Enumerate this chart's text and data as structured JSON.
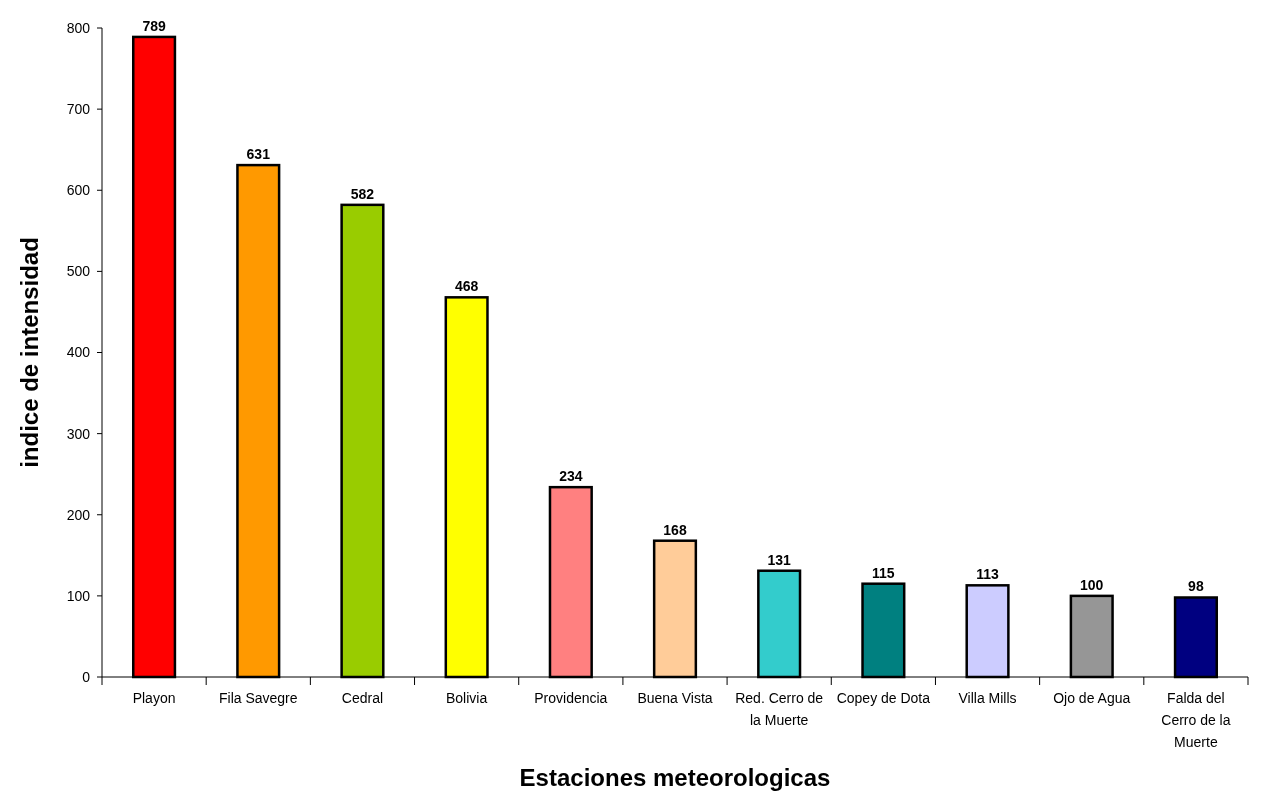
{
  "chart_data": {
    "type": "bar",
    "xlabel": "Estaciones meteorologicas",
    "ylabel": "indice de intensidad",
    "categories": [
      "Playon",
      "Fila Savegre",
      "Cedral",
      "Bolivia",
      "Providencia",
      "Buena Vista",
      "Red. Cerro de la Muerte",
      "Copey de Dota",
      "Villa Mills",
      "Ojo de Agua",
      "Falda del Cerro de la Muerte"
    ],
    "values": [
      789,
      631,
      582,
      468,
      234,
      168,
      131,
      115,
      113,
      100,
      98
    ],
    "colors": [
      "#ff0000",
      "#ff9900",
      "#99cc00",
      "#ffff00",
      "#ff8080",
      "#ffcc99",
      "#33cccc",
      "#008080",
      "#ccccff",
      "#969696",
      "#000080"
    ],
    "ylim": [
      0,
      800
    ],
    "yticks": [
      0,
      100,
      200,
      300,
      400,
      500,
      600,
      700,
      800
    ],
    "data_labels": true,
    "grid": false
  }
}
